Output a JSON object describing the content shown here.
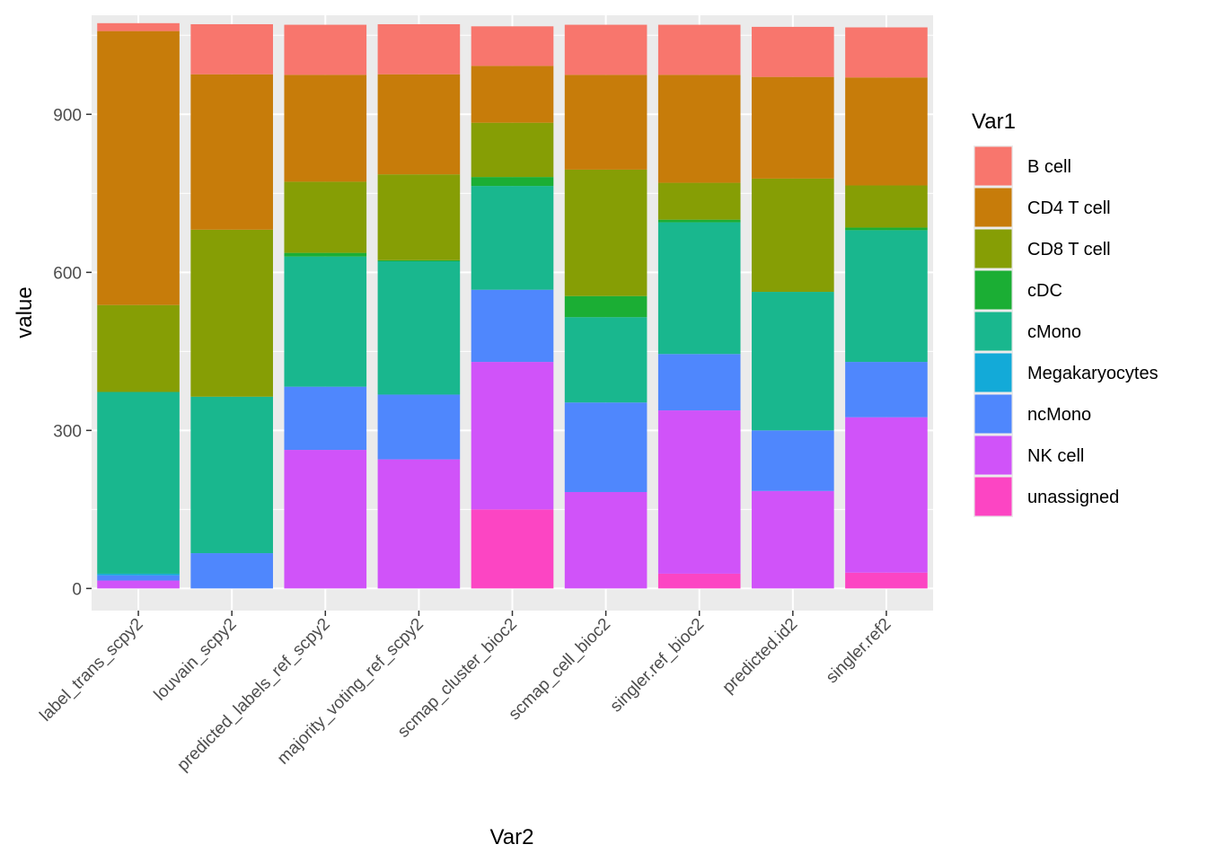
{
  "chart_data": {
    "type": "bar",
    "stacked": true,
    "xlabel": "Var2",
    "ylabel": "value",
    "ylim": [
      -42,
      1088
    ],
    "yticks": [
      0,
      300,
      600,
      900
    ],
    "categories": [
      "label_trans_scpy2",
      "louvain_scpy2",
      "predicted_labels_ref_scpy2",
      "majority_voting_ref_scpy2",
      "scmap_cluster_bioc2",
      "scmap_cell_bioc2",
      "singler.ref_bioc2",
      "predicted.id2",
      "singler.ref2"
    ],
    "legend": {
      "title": "Var1",
      "position": "right"
    },
    "stack_order_bottom_to_top": [
      "unassigned",
      "NK cell",
      "ncMono",
      "Megakaryocytes",
      "cMono",
      "cDC",
      "CD8 T cell",
      "CD4 T cell",
      "B cell"
    ],
    "series": [
      {
        "name": "B cell",
        "color": "#F8766D",
        "values": [
          15,
          95,
          95,
          95,
          75,
          95,
          95,
          95,
          95
        ]
      },
      {
        "name": "CD4 T cell",
        "color": "#C77C0A",
        "values": [
          520,
          295,
          203,
          190,
          108,
          180,
          205,
          193,
          205
        ]
      },
      {
        "name": "CD8 T cell",
        "color": "#869E05",
        "values": [
          165,
          317,
          135,
          163,
          103,
          240,
          70,
          215,
          80
        ]
      },
      {
        "name": "cDC",
        "color": "#1BAE34",
        "values": [
          0,
          0,
          7,
          2,
          17,
          40,
          5,
          0,
          5
        ]
      },
      {
        "name": "cMono",
        "color": "#19B78E",
        "values": [
          345,
          297,
          247,
          253,
          197,
          162,
          250,
          263,
          250
        ]
      },
      {
        "name": "Megakaryocytes",
        "color": "#13AAD8",
        "values": [
          3,
          0,
          0,
          0,
          0,
          0,
          0,
          0,
          0
        ]
      },
      {
        "name": "ncMono",
        "color": "#4F87FD",
        "values": [
          10,
          67,
          120,
          123,
          137,
          170,
          107,
          115,
          105
        ]
      },
      {
        "name": "NK cell",
        "color": "#D053F9",
        "values": [
          15,
          0,
          263,
          245,
          280,
          183,
          310,
          185,
          295
        ]
      },
      {
        "name": "unassigned",
        "color": "#FC45C3",
        "values": [
          0,
          0,
          0,
          0,
          150,
          0,
          28,
          0,
          30
        ]
      }
    ]
  }
}
